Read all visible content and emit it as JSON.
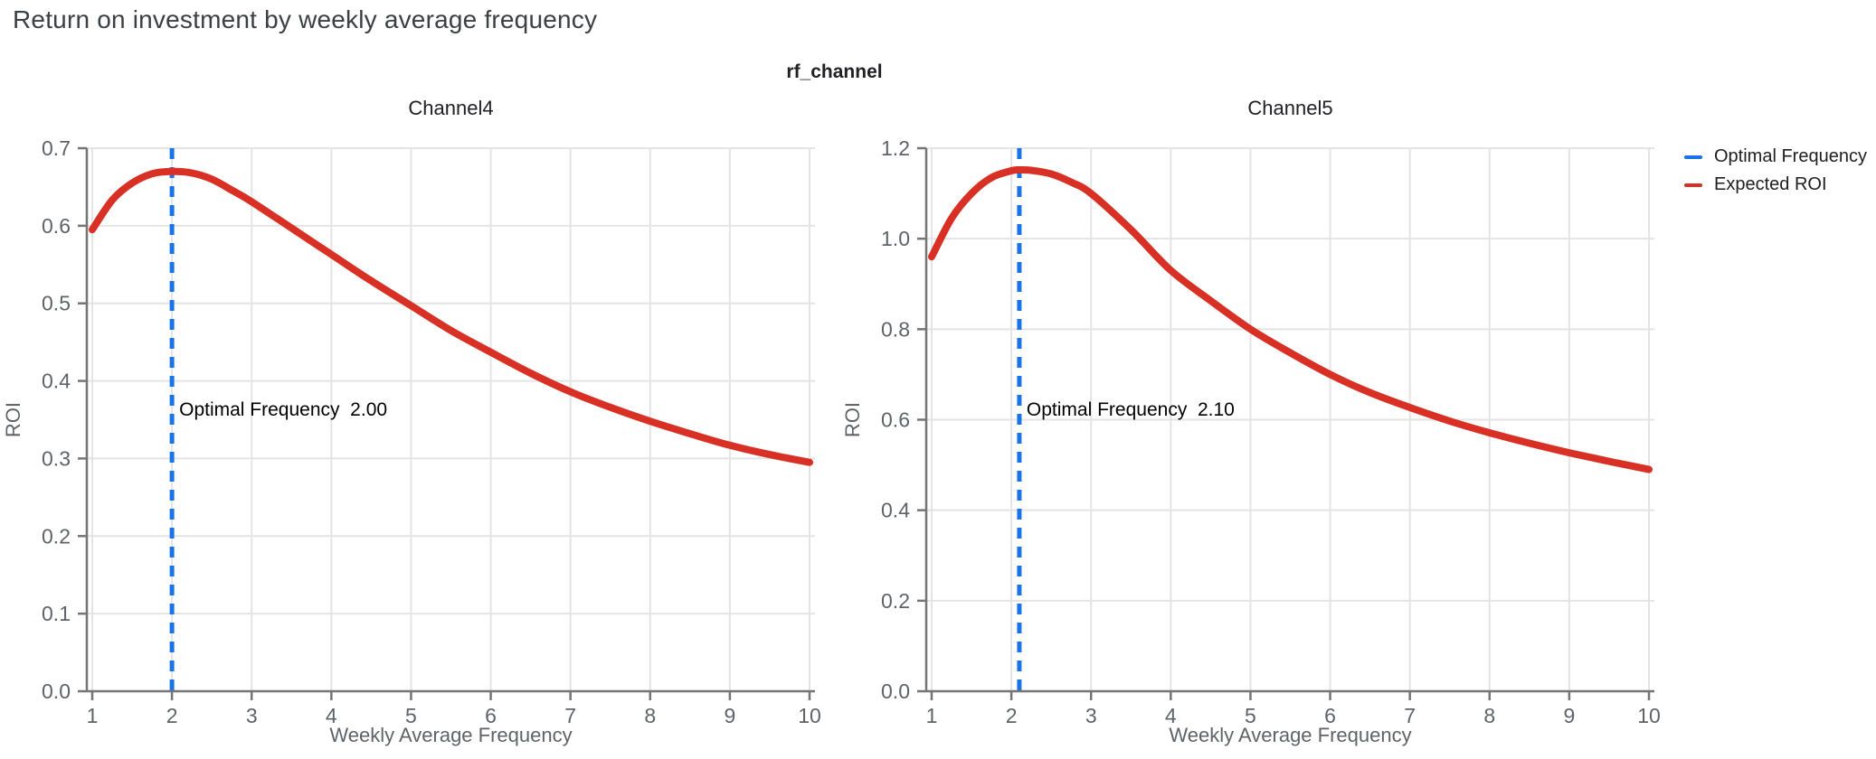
{
  "title": "Return on investment by weekly average frequency",
  "facet_label": "rf_channel",
  "legend": {
    "items": [
      {
        "label": "Optimal Frequency",
        "color": "#1a73e8"
      },
      {
        "label": "Expected ROI",
        "color": "#d93025"
      }
    ]
  },
  "colors": {
    "expected_roi_line": "#d93025",
    "optimal_frequency_line": "#1a73e8",
    "grid": "#e4e4e4",
    "spine": "#757575",
    "tick_text": "#5f6368",
    "axis_label_text": "#5f6368",
    "chart_title_text": "#202124",
    "annotation_text": "#000000"
  },
  "chart_data": [
    {
      "type": "line",
      "title": "Channel4",
      "xlabel": "Weekly Average Frequency",
      "ylabel": "ROI",
      "xlim": [
        1,
        10
      ],
      "ylim": [
        0,
        0.7
      ],
      "x_ticks": [
        1,
        2,
        3,
        4,
        5,
        6,
        7,
        8,
        9,
        10
      ],
      "x_tick_labels": [
        "1",
        "2",
        "3",
        "4",
        "5",
        "6",
        "7",
        "8",
        "9",
        "10"
      ],
      "y_ticks": [
        0,
        0.1,
        0.2,
        0.3,
        0.4,
        0.5,
        0.6,
        0.7
      ],
      "y_tick_labels": [
        "0.0",
        "0.1",
        "0.2",
        "0.3",
        "0.4",
        "0.5",
        "0.6",
        "0.7"
      ],
      "grid": true,
      "optimal_frequency": 2.0,
      "annotation": "Optimal Frequency  2.00",
      "series": [
        {
          "name": "Expected ROI",
          "x": [
            1.0,
            1.25,
            1.5,
            1.75,
            2.0,
            2.25,
            2.5,
            2.75,
            3.0,
            3.5,
            4.0,
            4.5,
            5.0,
            5.5,
            6.0,
            6.5,
            7.0,
            7.5,
            8.0,
            8.5,
            9.0,
            9.5,
            10.0
          ],
          "y": [
            0.595,
            0.633,
            0.655,
            0.667,
            0.67,
            0.668,
            0.66,
            0.646,
            0.631,
            0.597,
            0.563,
            0.529,
            0.497,
            0.465,
            0.437,
            0.41,
            0.386,
            0.366,
            0.348,
            0.332,
            0.317,
            0.305,
            0.295
          ]
        }
      ]
    },
    {
      "type": "line",
      "title": "Channel5",
      "xlabel": "Weekly Average Frequency",
      "ylabel": "ROI",
      "xlim": [
        1,
        10
      ],
      "ylim": [
        0,
        1.2
      ],
      "x_ticks": [
        1,
        2,
        3,
        4,
        5,
        6,
        7,
        8,
        9,
        10
      ],
      "x_tick_labels": [
        "1",
        "2",
        "3",
        "4",
        "5",
        "6",
        "7",
        "8",
        "9",
        "10"
      ],
      "y_ticks": [
        0,
        0.2,
        0.4,
        0.6,
        0.8,
        1.0,
        1.2
      ],
      "y_tick_labels": [
        "0.0",
        "0.2",
        "0.4",
        "0.6",
        "0.8",
        "1.0",
        "1.2"
      ],
      "grid": true,
      "optimal_frequency": 2.1,
      "annotation": "Optimal Frequency  2.10",
      "series": [
        {
          "name": "Expected ROI",
          "x": [
            1.0,
            1.25,
            1.5,
            1.75,
            2.0,
            2.1,
            2.25,
            2.5,
            2.75,
            3.0,
            3.5,
            4.0,
            4.5,
            5.0,
            5.5,
            6.0,
            6.5,
            7.0,
            7.5,
            8.0,
            8.5,
            9.0,
            9.5,
            10.0
          ],
          "y": [
            0.96,
            1.045,
            1.1,
            1.135,
            1.15,
            1.152,
            1.151,
            1.143,
            1.125,
            1.1,
            1.02,
            0.93,
            0.863,
            0.8,
            0.748,
            0.7,
            0.66,
            0.627,
            0.597,
            0.571,
            0.548,
            0.527,
            0.508,
            0.49
          ]
        }
      ]
    }
  ]
}
